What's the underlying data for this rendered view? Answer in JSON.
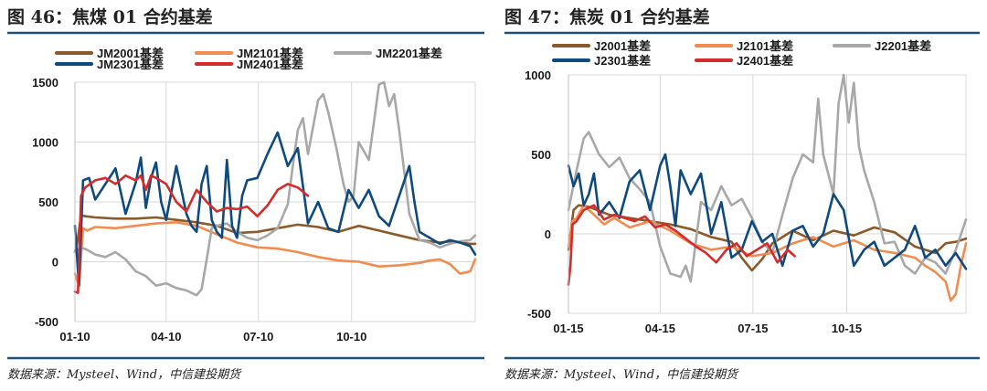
{
  "colors": {
    "brown": "#8B5A2B",
    "orange": "#F08C50",
    "gray": "#A8A8A8",
    "navy": "#0F4A7E",
    "red": "#D42C2C",
    "rule": "#1F4E79",
    "grid": "#D9D9D9"
  },
  "source_text": "数据来源：Mysteel、Wind，中信建投期货",
  "chart_data": [
    {
      "id": "fig46",
      "type": "line",
      "title": "图 46：焦煤 01 合约基差",
      "ylim": [
        -500,
        1500
      ],
      "yticks": [
        "1500",
        "1000",
        "500",
        "0",
        "-500"
      ],
      "ytick_values": [
        1500,
        1000,
        500,
        0,
        -500
      ],
      "xticks": [
        "01-10",
        "04-10",
        "07-10",
        "10-10"
      ],
      "xtick_days": [
        0,
        90,
        181,
        273
      ],
      "x_range_days": [
        0,
        395
      ],
      "grid": true,
      "legend": "top",
      "series": [
        {
          "name": "JM2001基差",
          "color_key": "brown",
          "x": [
            0,
            3,
            6,
            10,
            20,
            40,
            60,
            80,
            100,
            120,
            140,
            160,
            180,
            200,
            220,
            240,
            260,
            280,
            300,
            320,
            340,
            360,
            370,
            380,
            390,
            395
          ],
          "y": [
            80,
            200,
            390,
            380,
            370,
            360,
            360,
            370,
            350,
            330,
            300,
            240,
            250,
            280,
            310,
            290,
            250,
            300,
            260,
            220,
            180,
            160,
            170,
            160,
            150,
            150
          ]
        },
        {
          "name": "JM2101基差",
          "color_key": "orange",
          "x": [
            0,
            4,
            8,
            12,
            20,
            40,
            60,
            80,
            100,
            120,
            140,
            160,
            180,
            200,
            220,
            240,
            260,
            280,
            300,
            320,
            340,
            350,
            360,
            370,
            380,
            390,
            395
          ],
          "y": [
            -100,
            -200,
            280,
            260,
            290,
            280,
            300,
            320,
            330,
            300,
            230,
            160,
            120,
            110,
            80,
            40,
            10,
            0,
            -40,
            -30,
            -10,
            10,
            20,
            -20,
            -100,
            -80,
            20
          ]
        },
        {
          "name": "JM2201基差",
          "color_key": "gray",
          "x": [
            0,
            6,
            12,
            20,
            30,
            40,
            50,
            60,
            70,
            80,
            90,
            100,
            110,
            120,
            125,
            130,
            135,
            140,
            150,
            160,
            170,
            180,
            190,
            200,
            210,
            215,
            220,
            225,
            230,
            240,
            245,
            250,
            258,
            265,
            270,
            275,
            280,
            290,
            300,
            305,
            310,
            315,
            320,
            330,
            340,
            350,
            360,
            370,
            380,
            390,
            395
          ],
          "y": [
            80,
            120,
            100,
            60,
            40,
            80,
            20,
            -80,
            -120,
            -200,
            -180,
            -220,
            -240,
            -280,
            -230,
            20,
            280,
            300,
            320,
            250,
            200,
            180,
            220,
            280,
            480,
            800,
            1100,
            1200,
            900,
            1350,
            1400,
            1250,
            950,
            650,
            500,
            550,
            1000,
            850,
            1480,
            1500,
            1300,
            1400,
            1100,
            400,
            180,
            160,
            120,
            150,
            170,
            180,
            220
          ]
        },
        {
          "name": "JM2301基差",
          "color_key": "navy",
          "x": [
            0,
            4,
            8,
            14,
            20,
            30,
            40,
            50,
            60,
            65,
            70,
            75,
            80,
            85,
            90,
            100,
            110,
            115,
            120,
            125,
            130,
            135,
            140,
            145,
            150,
            155,
            160,
            165,
            170,
            180,
            190,
            200,
            210,
            220,
            230,
            240,
            250,
            260,
            270,
            280,
            290,
            300,
            310,
            320,
            330,
            335,
            340,
            350,
            360,
            370,
            380,
            390,
            395
          ],
          "y": [
            300,
            -200,
            680,
            700,
            520,
            650,
            780,
            400,
            660,
            870,
            450,
            700,
            830,
            500,
            350,
            800,
            400,
            300,
            250,
            650,
            800,
            350,
            250,
            200,
            850,
            300,
            200,
            550,
            680,
            700,
            900,
            1080,
            800,
            950,
            320,
            500,
            280,
            250,
            600,
            450,
            600,
            380,
            300,
            550,
            800,
            500,
            250,
            200,
            150,
            180,
            160,
            130,
            60
          ]
        },
        {
          "name": "JM2401基差",
          "color_key": "red",
          "x": [
            0,
            3,
            6,
            10,
            20,
            30,
            40,
            50,
            60,
            65,
            70,
            75,
            80,
            90,
            100,
            110,
            120,
            130,
            140,
            150,
            160,
            170,
            180,
            190,
            200,
            210,
            220,
            230
          ],
          "y": [
            -250,
            -260,
            550,
            620,
            680,
            700,
            650,
            720,
            680,
            720,
            600,
            720,
            700,
            650,
            500,
            420,
            600,
            500,
            420,
            450,
            440,
            460,
            380,
            470,
            600,
            650,
            620,
            550
          ]
        }
      ]
    },
    {
      "id": "fig47",
      "type": "line",
      "title": "图 47：焦炭 01 合约基差",
      "ylim": [
        -500,
        1000
      ],
      "yticks": [
        "1000",
        "500",
        "0",
        "-500"
      ],
      "ytick_values": [
        1000,
        500,
        0,
        -500
      ],
      "xticks": [
        "01-15",
        "04-15",
        "07-15",
        "10-15"
      ],
      "xtick_days": [
        0,
        90,
        181,
        273
      ],
      "x_range_days": [
        0,
        390
      ],
      "grid": true,
      "legend": "top",
      "series": [
        {
          "name": "J2001基差",
          "color_key": "brown",
          "x": [
            0,
            5,
            10,
            20,
            40,
            60,
            80,
            100,
            120,
            140,
            160,
            170,
            180,
            190,
            200,
            210,
            220,
            240,
            260,
            280,
            300,
            320,
            340,
            360,
            370,
            380,
            390
          ],
          "y": [
            -100,
            150,
            180,
            170,
            120,
            100,
            80,
            60,
            30,
            -20,
            -50,
            -150,
            -230,
            -160,
            -60,
            -20,
            20,
            -40,
            20,
            -10,
            40,
            10,
            -80,
            -120,
            -60,
            -50,
            -30
          ]
        },
        {
          "name": "J2101基差",
          "color_key": "orange",
          "x": [
            0,
            4,
            8,
            15,
            25,
            35,
            45,
            60,
            80,
            100,
            120,
            140,
            160,
            180,
            200,
            220,
            240,
            260,
            280,
            300,
            320,
            340,
            350,
            360,
            370,
            375,
            380,
            385,
            390
          ],
          "y": [
            -80,
            80,
            100,
            180,
            120,
            60,
            100,
            40,
            80,
            20,
            -60,
            -100,
            -80,
            -140,
            -120,
            -60,
            -20,
            -80,
            -40,
            -100,
            -120,
            -150,
            -200,
            -240,
            -300,
            -420,
            -380,
            -200,
            -60
          ]
        },
        {
          "name": "J2201基差",
          "color_key": "gray",
          "x": [
            0,
            8,
            15,
            20,
            30,
            40,
            50,
            60,
            70,
            80,
            90,
            100,
            110,
            115,
            120,
            130,
            140,
            150,
            160,
            170,
            180,
            190,
            200,
            210,
            220,
            230,
            240,
            245,
            250,
            260,
            265,
            270,
            275,
            280,
            285,
            290,
            300,
            310,
            320,
            330,
            340,
            350,
            360,
            370,
            380,
            390
          ],
          "y": [
            150,
            400,
            600,
            640,
            500,
            420,
            480,
            350,
            280,
            200,
            -80,
            -250,
            -270,
            -200,
            -300,
            200,
            150,
            300,
            180,
            220,
            100,
            -50,
            -120,
            120,
            350,
            500,
            450,
            850,
            500,
            250,
            820,
            1050,
            700,
            950,
            550,
            400,
            200,
            -60,
            -50,
            -200,
            -250,
            -150,
            -180,
            -250,
            -100,
            90
          ]
        },
        {
          "name": "J2301基差",
          "color_key": "navy",
          "x": [
            0,
            5,
            10,
            15,
            20,
            25,
            30,
            40,
            50,
            60,
            70,
            80,
            90,
            95,
            100,
            105,
            110,
            120,
            130,
            140,
            150,
            160,
            170,
            180,
            190,
            200,
            210,
            220,
            230,
            240,
            250,
            260,
            270,
            280,
            290,
            300,
            310,
            320,
            330,
            340,
            350,
            360,
            370,
            380,
            390
          ],
          "y": [
            430,
            300,
            380,
            180,
            250,
            380,
            120,
            200,
            100,
            330,
            400,
            150,
            430,
            500,
            300,
            50,
            400,
            250,
            380,
            0,
            200,
            -150,
            -100,
            80,
            -50,
            0,
            -200,
            20,
            50,
            -80,
            0,
            250,
            150,
            -200,
            -100,
            -50,
            -200,
            -150,
            -100,
            50,
            -150,
            -100,
            -200,
            -120,
            -220
          ]
        },
        {
          "name": "J2401基差",
          "color_key": "red",
          "x": [
            0,
            2,
            4,
            8,
            15,
            25,
            35,
            45,
            55,
            65,
            75,
            85,
            95,
            105,
            115,
            125,
            135,
            145,
            155,
            165,
            175,
            185,
            195,
            205,
            215,
            222
          ],
          "y": [
            -320,
            -200,
            60,
            80,
            150,
            180,
            90,
            120,
            100,
            80,
            110,
            40,
            60,
            20,
            -30,
            -80,
            -120,
            -180,
            -100,
            -60,
            -140,
            -100,
            -60,
            -180,
            -100,
            -140
          ]
        }
      ]
    }
  ]
}
